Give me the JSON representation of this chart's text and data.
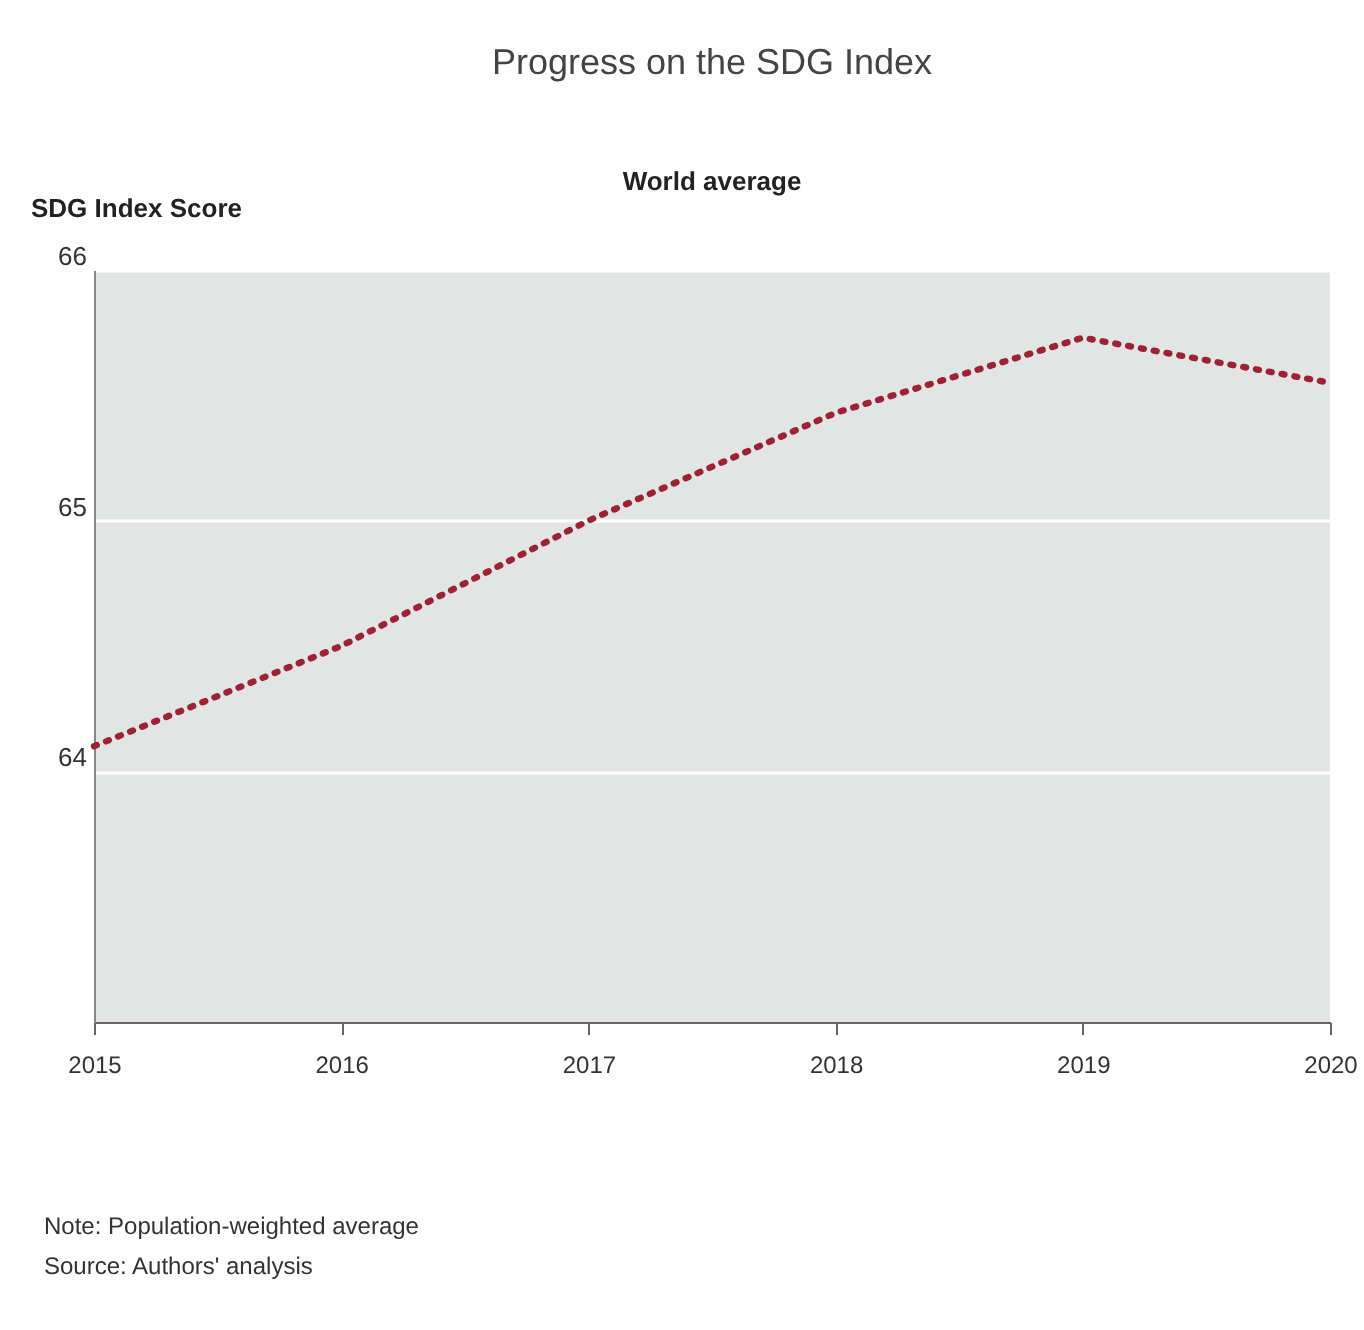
{
  "chart_data": {
    "type": "line",
    "title": "Progress on the SDG Index",
    "subtitle": "World average",
    "ylabel": "SDG Index Score",
    "x": [
      2015,
      2016,
      2017,
      2018,
      2019,
      2020
    ],
    "series": [
      {
        "color": "#9b2335",
        "values": [
          64.1,
          64.5,
          65.0,
          65.43,
          65.73,
          65.55
        ]
      }
    ],
    "xlim": [
      2015,
      2020
    ],
    "xticks": [
      2015,
      2016,
      2017,
      2018,
      2019,
      2020
    ],
    "ylim": [
      63,
      66
    ],
    "yticks": [
      64,
      65,
      66
    ],
    "grid": "y",
    "marker": "none",
    "line_style": "dotted",
    "annotations": [
      "Note: Population-weighted average",
      "Source: Authors' analysis"
    ]
  }
}
